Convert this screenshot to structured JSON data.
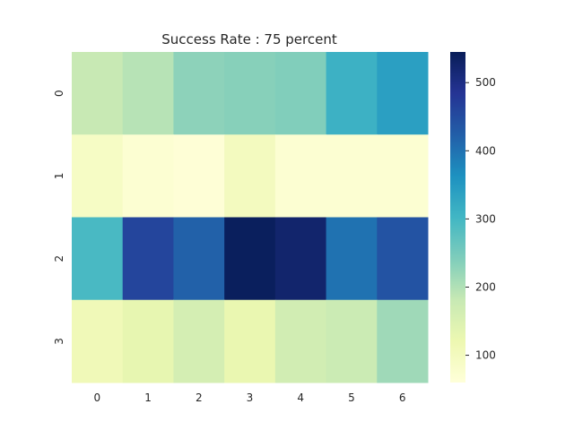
{
  "chart_data": {
    "type": "heatmap",
    "title": "Success Rate : 75 percent",
    "xlabel": "",
    "ylabel": "",
    "x_categories": [
      "0",
      "1",
      "2",
      "3",
      "4",
      "5",
      "6"
    ],
    "y_categories": [
      "0",
      "1",
      "2",
      "3"
    ],
    "values": [
      [
        180,
        195,
        230,
        235,
        240,
        310,
        340
      ],
      [
        90,
        70,
        65,
        100,
        70,
        70,
        70
      ],
      [
        295,
        460,
        420,
        540,
        525,
        400,
        440
      ],
      [
        110,
        130,
        160,
        125,
        165,
        175,
        215
      ]
    ],
    "colormap": "YlGnBu",
    "vmin": 60,
    "vmax": 545,
    "colorbar": {
      "ticks": [
        100,
        200,
        300,
        400,
        500
      ],
      "tick_labels": [
        "100",
        "200",
        "300",
        "400",
        "500"
      ]
    },
    "grid": false,
    "legend": "colorbar-right"
  }
}
